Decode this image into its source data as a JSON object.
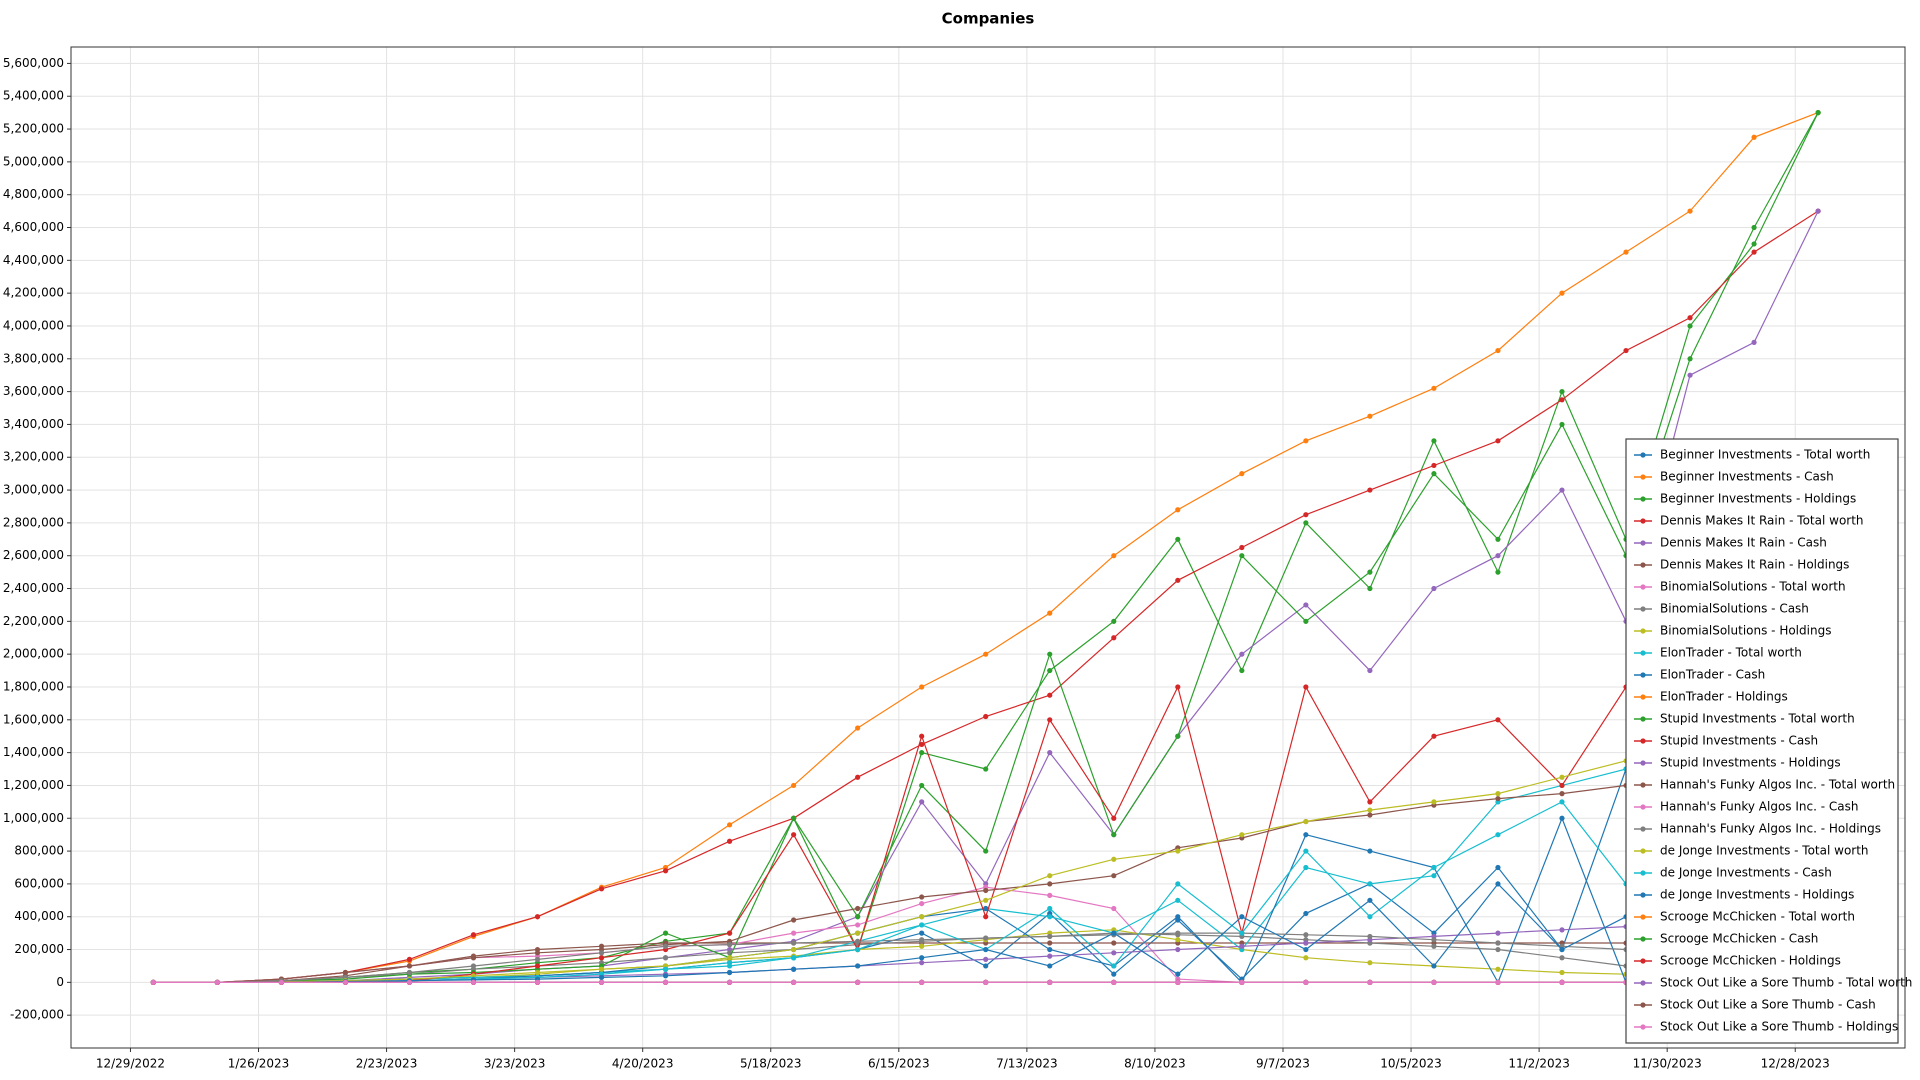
{
  "chart_data": {
    "type": "line",
    "title": "Companies",
    "x": [
      "2023-01-03",
      "2023-01-17",
      "2023-01-31",
      "2023-02-14",
      "2023-02-28",
      "2023-03-14",
      "2023-03-28",
      "2023-04-11",
      "2023-04-25",
      "2023-05-09",
      "2023-05-23",
      "2023-06-06",
      "2023-06-20",
      "2023-07-04",
      "2023-07-18",
      "2023-08-01",
      "2023-08-15",
      "2023-08-29",
      "2023-09-12",
      "2023-09-26",
      "2023-10-10",
      "2023-10-24",
      "2023-11-07",
      "2023-11-21",
      "2023-12-05",
      "2023-12-19",
      "2024-01-02"
    ],
    "xlim": [
      "2022-12-16",
      "2024-01-21"
    ],
    "xticks": [
      {
        "value": "2022-12-29",
        "label": "12/29/2022"
      },
      {
        "value": "2023-01-26",
        "label": "1/26/2023"
      },
      {
        "value": "2023-02-23",
        "label": "2/23/2023"
      },
      {
        "value": "2023-03-23",
        "label": "3/23/2023"
      },
      {
        "value": "2023-04-20",
        "label": "4/20/2023"
      },
      {
        "value": "2023-05-18",
        "label": "5/18/2023"
      },
      {
        "value": "2023-06-15",
        "label": "6/15/2023"
      },
      {
        "value": "2023-07-13",
        "label": "7/13/2023"
      },
      {
        "value": "2023-08-10",
        "label": "8/10/2023"
      },
      {
        "value": "2023-09-07",
        "label": "9/7/2023"
      },
      {
        "value": "2023-10-05",
        "label": "10/5/2023"
      },
      {
        "value": "2023-11-02",
        "label": "11/2/2023"
      },
      {
        "value": "2023-11-30",
        "label": "11/30/2023"
      },
      {
        "value": "2023-12-28",
        "label": "12/28/2023"
      }
    ],
    "ylim": [
      -400000,
      5700000
    ],
    "yticks": [
      {
        "value": -200000,
        "label": "-200,000"
      },
      0,
      {
        "value": 200000,
        "label": "200,000"
      },
      {
        "value": 400000,
        "label": "400,000"
      },
      {
        "value": 600000,
        "label": "600,000"
      },
      {
        "value": 800000,
        "label": "800,000"
      },
      {
        "value": 1000000,
        "label": "1,000,000"
      },
      {
        "value": 1200000,
        "label": "1,200,000"
      },
      {
        "value": 1400000,
        "label": "1,400,000"
      },
      {
        "value": 1600000,
        "label": "1,600,000"
      },
      {
        "value": 1800000,
        "label": "1,800,000"
      },
      {
        "value": 2000000,
        "label": "2,000,000"
      },
      {
        "value": 2200000,
        "label": "2,200,000"
      },
      {
        "value": 2400000,
        "label": "2,400,000"
      },
      {
        "value": 2600000,
        "label": "2,600,000"
      },
      {
        "value": 2800000,
        "label": "2,800,000"
      },
      {
        "value": 3000000,
        "label": "3,000,000"
      },
      {
        "value": 3200000,
        "label": "3,200,000"
      },
      {
        "value": 3400000,
        "label": "3,400,000"
      },
      {
        "value": 3600000,
        "label": "3,600,000"
      },
      {
        "value": 3800000,
        "label": "3,800,000"
      },
      {
        "value": 4000000,
        "label": "4,000,000"
      },
      {
        "value": 4200000,
        "label": "4,200,000"
      },
      {
        "value": 4400000,
        "label": "4,400,000"
      },
      {
        "value": 4600000,
        "label": "4,600,000"
      },
      {
        "value": 4800000,
        "label": "4,800,000"
      },
      {
        "value": 5000000,
        "label": "5,000,000"
      },
      {
        "value": 5200000,
        "label": "5,200,000"
      },
      {
        "value": 5400000,
        "label": "5,400,000"
      },
      {
        "value": 5600000,
        "label": "5,600,000"
      }
    ],
    "grid": true,
    "legend": "lower right",
    "series": [
      {
        "name": "Beginner Investments - Total worth",
        "color": "#1f77b4",
        "values": [
          0,
          0,
          5000,
          10000,
          20000,
          30000,
          40000,
          60000,
          80000,
          120000,
          150000,
          200000,
          300000,
          100000,
          420000,
          50000,
          380000,
          20000,
          420000,
          600000,
          300000,
          700000,
          200000,
          1300000,
          400000,
          300000,
          0
        ]
      },
      {
        "name": "Beginner Investments - Cash",
        "color": "#ff7f0e",
        "values": [
          0,
          0,
          20000,
          60000,
          130000,
          280000,
          400000,
          580000,
          700000,
          960000,
          1200000,
          1550000,
          1800000,
          2000000,
          2250000,
          2600000,
          2880000,
          3100000,
          3300000,
          3450000,
          3620000,
          3850000,
          4200000,
          4450000,
          4700000,
          5150000,
          5300000
        ]
      },
      {
        "name": "Beginner Investments - Holdings",
        "color": "#2ca02c",
        "values": [
          0,
          0,
          10000,
          30000,
          60000,
          80000,
          120000,
          150000,
          250000,
          300000,
          1000000,
          200000,
          1400000,
          1300000,
          1900000,
          2200000,
          2700000,
          1900000,
          2800000,
          2400000,
          3300000,
          2500000,
          3600000,
          2700000,
          4000000,
          4500000,
          5300000
        ]
      },
      {
        "name": "Dennis Makes It Rain - Total worth",
        "color": "#d62728",
        "values": [
          0,
          0,
          20000,
          60000,
          140000,
          290000,
          400000,
          570000,
          680000,
          860000,
          1000000,
          1250000,
          1450000,
          1620000,
          1750000,
          2100000,
          2450000,
          2650000,
          2850000,
          3000000,
          3150000,
          3300000,
          3550000,
          3850000,
          4050000,
          4450000,
          4700000
        ]
      },
      {
        "name": "Dennis Makes It Rain - Cash",
        "color": "#9467bd",
        "values": [
          0,
          0,
          5000,
          10000,
          30000,
          50000,
          80000,
          100000,
          150000,
          200000,
          250000,
          400000,
          1100000,
          600000,
          1400000,
          900000,
          1500000,
          2000000,
          2300000,
          1900000,
          2400000,
          2600000,
          3000000,
          2200000,
          3700000,
          3900000,
          4700000
        ]
      },
      {
        "name": "Dennis Makes It Rain - Holdings",
        "color": "#8c564b",
        "values": [
          0,
          0,
          10000,
          40000,
          100000,
          160000,
          200000,
          220000,
          240000,
          240000,
          240000,
          240000,
          240000,
          240000,
          240000,
          240000,
          240000,
          240000,
          240000,
          240000,
          240000,
          240000,
          240000,
          240000,
          240000,
          240000,
          240000
        ]
      },
      {
        "name": "BinomialSolutions - Total worth",
        "color": "#e377c2",
        "values": [
          0,
          0,
          20000,
          60000,
          100000,
          150000,
          160000,
          180000,
          220000,
          230000,
          300000,
          350000,
          480000,
          580000,
          530000,
          450000,
          20000,
          0,
          0,
          0,
          0,
          0,
          0,
          0,
          0,
          0,
          0
        ]
      },
      {
        "name": "BinomialSolutions - Cash",
        "color": "#7f7f7f",
        "values": [
          0,
          0,
          10000,
          30000,
          50000,
          80000,
          100000,
          120000,
          150000,
          180000,
          200000,
          230000,
          250000,
          270000,
          280000,
          300000,
          290000,
          280000,
          260000,
          240000,
          220000,
          200000,
          150000,
          100000,
          60000,
          30000,
          0
        ]
      },
      {
        "name": "BinomialSolutions - Holdings",
        "color": "#bcbd22",
        "values": [
          0,
          0,
          5000,
          10000,
          20000,
          30000,
          50000,
          80000,
          100000,
          140000,
          160000,
          200000,
          220000,
          260000,
          300000,
          320000,
          260000,
          200000,
          150000,
          120000,
          100000,
          80000,
          60000,
          50000,
          40000,
          30000,
          20000
        ]
      },
      {
        "name": "ElonTrader - Total worth",
        "color": "#17becf",
        "values": [
          0,
          0,
          0,
          10000,
          20000,
          30000,
          40000,
          60000,
          80000,
          120000,
          150000,
          250000,
          350000,
          450000,
          400000,
          300000,
          500000,
          200000,
          700000,
          600000,
          650000,
          1100000,
          1200000,
          1300000,
          1000000,
          800000,
          0
        ]
      },
      {
        "name": "ElonTrader - Cash",
        "color": "#1f77b4",
        "values": [
          0,
          0,
          0,
          0,
          10000,
          20000,
          40000,
          60000,
          100000,
          150000,
          200000,
          300000,
          400000,
          450000,
          200000,
          100000,
          400000,
          0,
          900000,
          800000,
          700000,
          0,
          1000000,
          0,
          400000,
          0,
          0
        ]
      },
      {
        "name": "ElonTrader - Holdings",
        "color": "#ff7f0e",
        "values": [
          0,
          0,
          0,
          0,
          0,
          0,
          0,
          0,
          0,
          0,
          0,
          0,
          0,
          0,
          0,
          0,
          0,
          0,
          0,
          0,
          0,
          0,
          0,
          0,
          0,
          0,
          0
        ]
      },
      {
        "name": "Stupid Investments - Total worth",
        "color": "#2ca02c",
        "values": [
          0,
          0,
          10000,
          20000,
          50000,
          60000,
          80000,
          100000,
          300000,
          150000,
          1000000,
          400000,
          1200000,
          800000,
          2000000,
          900000,
          1500000,
          2600000,
          2200000,
          2500000,
          3100000,
          2700000,
          3400000,
          2600000,
          3800000,
          4600000,
          5300000
        ]
      },
      {
        "name": "Stupid Investments - Cash",
        "color": "#d62728",
        "values": [
          0,
          0,
          0,
          0,
          10000,
          50000,
          100000,
          150000,
          200000,
          300000,
          900000,
          200000,
          1500000,
          400000,
          1600000,
          1000000,
          1800000,
          300000,
          1800000,
          1100000,
          1500000,
          1600000,
          1200000,
          1800000,
          1900000,
          600000,
          0
        ]
      },
      {
        "name": "Stupid Investments - Holdings",
        "color": "#9467bd",
        "values": [
          0,
          0,
          0,
          5000,
          10000,
          20000,
          30000,
          40000,
          50000,
          60000,
          80000,
          100000,
          120000,
          140000,
          160000,
          180000,
          200000,
          220000,
          240000,
          260000,
          280000,
          300000,
          320000,
          340000,
          360000,
          380000,
          400000
        ]
      },
      {
        "name": "Hannah's Funky Algos Inc. - Total worth",
        "color": "#8c564b",
        "values": [
          0,
          0,
          20000,
          60000,
          100000,
          150000,
          180000,
          200000,
          230000,
          250000,
          380000,
          450000,
          520000,
          560000,
          600000,
          650000,
          820000,
          880000,
          980000,
          1020000,
          1080000,
          1120000,
          1150000,
          1200000,
          1250000,
          1300000,
          1350000
        ]
      },
      {
        "name": "Hannah's Funky Algos Inc. - Cash",
        "color": "#e377c2",
        "values": [
          0,
          0,
          0,
          0,
          0,
          0,
          0,
          0,
          0,
          0,
          0,
          0,
          0,
          0,
          0,
          0,
          0,
          0,
          0,
          0,
          0,
          0,
          0,
          0,
          0,
          0,
          0
        ]
      },
      {
        "name": "Hannah's Funky Algos Inc. - Holdings",
        "color": "#7f7f7f",
        "values": [
          0,
          0,
          10000,
          30000,
          60000,
          100000,
          140000,
          180000,
          220000,
          230000,
          240000,
          250000,
          260000,
          270000,
          280000,
          290000,
          300000,
          300000,
          290000,
          280000,
          260000,
          240000,
          220000,
          200000,
          180000,
          160000,
          140000
        ]
      },
      {
        "name": "de Jonge Investments - Total worth",
        "color": "#bcbd22",
        "values": [
          0,
          0,
          0,
          10000,
          20000,
          40000,
          60000,
          80000,
          100000,
          150000,
          200000,
          300000,
          400000,
          500000,
          650000,
          750000,
          800000,
          900000,
          980000,
          1050000,
          1100000,
          1150000,
          1250000,
          1350000,
          1480000,
          1500000,
          1500000
        ]
      },
      {
        "name": "de Jonge Investments - Cash",
        "color": "#17becf",
        "values": [
          0,
          0,
          0,
          0,
          10000,
          20000,
          30000,
          50000,
          80000,
          100000,
          150000,
          200000,
          350000,
          200000,
          450000,
          100000,
          600000,
          300000,
          800000,
          400000,
          700000,
          900000,
          1100000,
          600000,
          1300000,
          500000,
          0
        ]
      },
      {
        "name": "de Jonge Investments - Holdings",
        "color": "#1f77b4",
        "values": [
          0,
          0,
          0,
          5000,
          10000,
          15000,
          20000,
          30000,
          40000,
          60000,
          80000,
          100000,
          150000,
          200000,
          100000,
          300000,
          50000,
          400000,
          200000,
          500000,
          100000,
          600000,
          200000,
          400000,
          500000,
          200000,
          0
        ]
      },
      {
        "name": "Scrooge McChicken - Total worth",
        "color": "#ff7f0e",
        "values": [
          0,
          0,
          0,
          0,
          0,
          0,
          0,
          0,
          0,
          0,
          0,
          0,
          0,
          0,
          0,
          0,
          0,
          0,
          0,
          0,
          0,
          0,
          0,
          0,
          0,
          0,
          0
        ]
      },
      {
        "name": "Scrooge McChicken - Cash",
        "color": "#2ca02c",
        "values": [
          0,
          0,
          0,
          0,
          0,
          0,
          0,
          0,
          0,
          0,
          0,
          0,
          0,
          0,
          0,
          0,
          0,
          0,
          0,
          0,
          0,
          0,
          0,
          0,
          0,
          0,
          0
        ]
      },
      {
        "name": "Scrooge McChicken - Holdings",
        "color": "#d62728",
        "values": [
          0,
          0,
          0,
          0,
          0,
          0,
          0,
          0,
          0,
          0,
          0,
          0,
          0,
          0,
          0,
          0,
          0,
          0,
          0,
          0,
          0,
          0,
          0,
          0,
          0,
          0,
          0
        ]
      },
      {
        "name": "Stock Out Like a Sore Thumb - Total worth",
        "color": "#9467bd",
        "values": [
          0,
          0,
          0,
          0,
          0,
          0,
          0,
          0,
          0,
          0,
          0,
          0,
          0,
          0,
          0,
          0,
          0,
          0,
          0,
          0,
          0,
          0,
          0,
          0,
          0,
          0,
          0
        ]
      },
      {
        "name": "Stock Out Like a Sore Thumb - Cash",
        "color": "#8c564b",
        "values": [
          0,
          0,
          0,
          0,
          0,
          0,
          0,
          0,
          0,
          0,
          0,
          0,
          0,
          0,
          0,
          0,
          0,
          0,
          0,
          0,
          0,
          0,
          0,
          0,
          0,
          0,
          0
        ]
      },
      {
        "name": "Stock Out Like a Sore Thumb - Holdings",
        "color": "#e377c2",
        "values": [
          0,
          0,
          0,
          0,
          0,
          0,
          0,
          0,
          0,
          0,
          0,
          0,
          0,
          0,
          0,
          0,
          0,
          0,
          0,
          0,
          0,
          0,
          0,
          0,
          0,
          0,
          0
        ]
      }
    ]
  }
}
